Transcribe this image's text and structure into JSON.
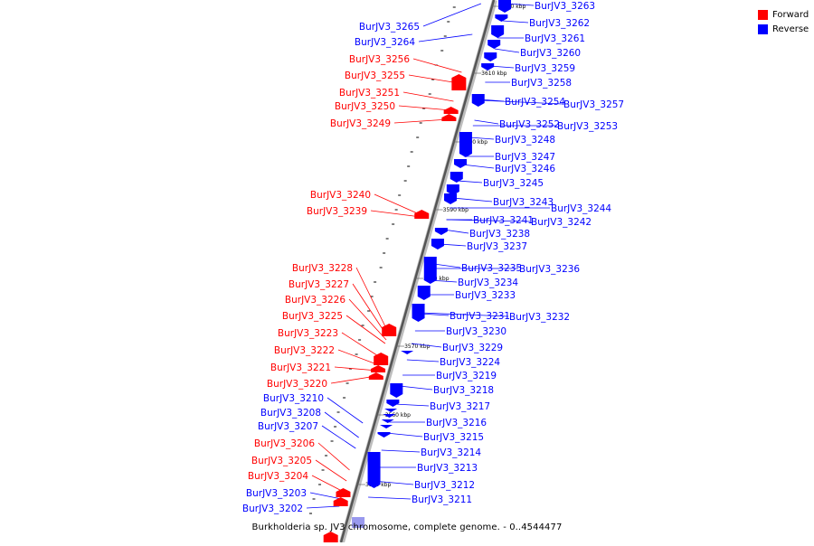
{
  "legend": {
    "forward_label": "Forward",
    "reverse_label": "Reverse",
    "forward_color": "#ff0000",
    "reverse_color": "#0000ff"
  },
  "caption": "Burkholderia sp. JV3 chromosome, complete genome. - 0..4544477",
  "kbp_ticks": [
    {
      "label": "3620 kbp",
      "pos": 3620
    },
    {
      "label": "3610 kbp",
      "pos": 3610
    },
    {
      "label": "3600 kbp",
      "pos": 3600
    },
    {
      "label": "3590 kbp",
      "pos": 3590
    },
    {
      "label": "3580 kbp",
      "pos": 3580
    },
    {
      "label": "3570 kbp",
      "pos": 3570
    },
    {
      "label": "3560 kbp",
      "pos": 3560
    },
    {
      "label": "3550 kbp",
      "pos": 3550
    }
  ],
  "reverse_genes": [
    "BurJV3_3263",
    "BurJV3_3262",
    "BurJV3_3261",
    "BurJV3_3260",
    "BurJV3_3259",
    "BurJV3_3258",
    "BurJV3_3257",
    "BurJV3_3254",
    "BurJV3_3253",
    "BurJV3_3252",
    "BurJV3_3248",
    "BurJV3_3247",
    "BurJV3_3246",
    "BurJV3_3245",
    "BurJV3_3244",
    "BurJV3_3243",
    "BurJV3_3242",
    "BurJV3_3241",
    "BurJV3_3238",
    "BurJV3_3237",
    "BurJV3_3236",
    "BurJV3_3235",
    "BurJV3_3234",
    "BurJV3_3233",
    "BurJV3_3232",
    "BurJV3_3231",
    "BurJV3_3230",
    "BurJV3_3229",
    "BurJV3_3224",
    "BurJV3_3219",
    "BurJV3_3218",
    "BurJV3_3217",
    "BurJV3_3216",
    "BurJV3_3215",
    "BurJV3_3214",
    "BurJV3_3213",
    "BurJV3_3212",
    "BurJV3_3211"
  ],
  "left_genes": [
    {
      "name": "BurJV3_3265",
      "strand": "reverse"
    },
    {
      "name": "BurJV3_3264",
      "strand": "reverse"
    },
    {
      "name": "BurJV3_3256",
      "strand": "forward"
    },
    {
      "name": "BurJV3_3255",
      "strand": "forward"
    },
    {
      "name": "BurJV3_3251",
      "strand": "forward"
    },
    {
      "name": "BurJV3_3250",
      "strand": "forward"
    },
    {
      "name": "BurJV3_3249",
      "strand": "forward"
    },
    {
      "name": "BurJV3_3240",
      "strand": "forward"
    },
    {
      "name": "BurJV3_3239",
      "strand": "forward"
    },
    {
      "name": "BurJV3_3228",
      "strand": "forward"
    },
    {
      "name": "BurJV3_3227",
      "strand": "forward"
    },
    {
      "name": "BurJV3_3226",
      "strand": "forward"
    },
    {
      "name": "BurJV3_3225",
      "strand": "forward"
    },
    {
      "name": "BurJV3_3223",
      "strand": "forward"
    },
    {
      "name": "BurJV3_3222",
      "strand": "forward"
    },
    {
      "name": "BurJV3_3221",
      "strand": "forward"
    },
    {
      "name": "BurJV3_3220",
      "strand": "forward"
    },
    {
      "name": "BurJV3_3210",
      "strand": "reverse"
    },
    {
      "name": "BurJV3_3208",
      "strand": "reverse"
    },
    {
      "name": "BurJV3_3207",
      "strand": "reverse"
    },
    {
      "name": "BurJV3_3206",
      "strand": "forward"
    },
    {
      "name": "BurJV3_3205",
      "strand": "forward"
    },
    {
      "name": "BurJV3_3204",
      "strand": "forward"
    },
    {
      "name": "BurJV3_3203",
      "strand": "reverse"
    },
    {
      "name": "BurJV3_3202",
      "strand": "reverse"
    }
  ]
}
